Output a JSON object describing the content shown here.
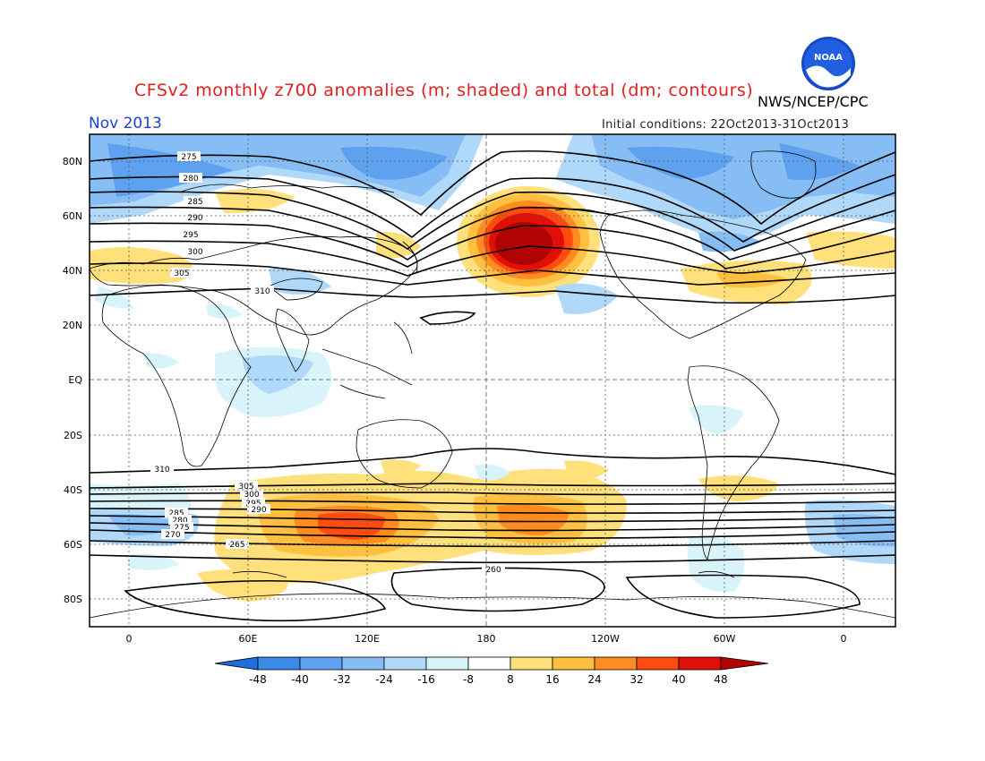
{
  "header": {
    "title": "CFSv2 monthly z700 anomalies (m; shaded) and total (dm; contours)",
    "organization": "NWS/NCEP/CPC",
    "month": "Nov 2013",
    "initial_conditions": "Initial conditions: 22Oct2013-31Oct2013",
    "logo_text": "NOAA"
  },
  "axes": {
    "lat_labels": [
      "80N",
      "60N",
      "40N",
      "20N",
      "EQ",
      "20S",
      "40S",
      "60S",
      "80S"
    ],
    "lon_labels": [
      "0",
      "60E",
      "120E",
      "180",
      "120W",
      "60W",
      "0"
    ]
  },
  "colorbar": {
    "ticks": [
      "-48",
      "-40",
      "-32",
      "-24",
      "-16",
      "-8",
      "8",
      "16",
      "24",
      "32",
      "40",
      "48"
    ],
    "colors": [
      "#1e6ee0",
      "#3a8ae8",
      "#5ea2ef",
      "#86bdf5",
      "#b0d8f8",
      "#d8f4fa",
      "#ffffff",
      "#ffe07a",
      "#ffbf40",
      "#ff8c20",
      "#ff4a10",
      "#e01008",
      "#b00404"
    ]
  },
  "contour_labels": {
    "nh": [
      "275",
      "280",
      "285",
      "290",
      "295",
      "300",
      "305",
      "310"
    ],
    "sh": [
      "310",
      "305",
      "300",
      "295",
      "290",
      "285",
      "280",
      "275",
      "270",
      "265",
      "260"
    ]
  }
}
